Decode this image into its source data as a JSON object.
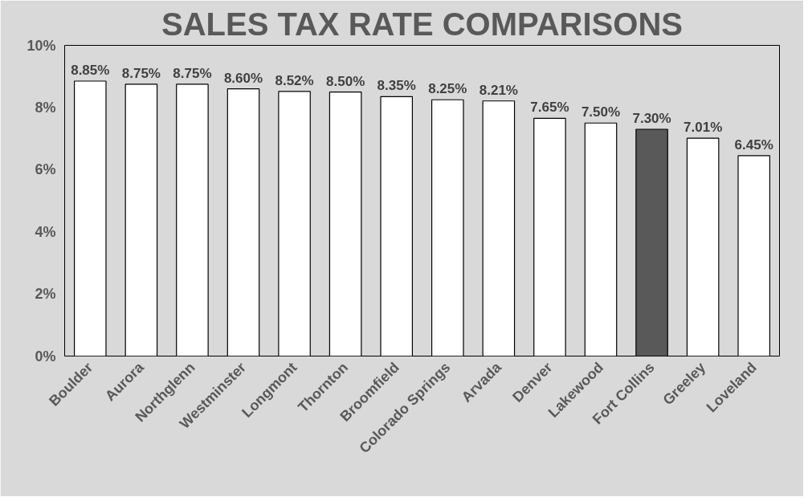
{
  "chart_data": {
    "type": "bar",
    "title": "SALES TAX RATE COMPARISONS",
    "categories": [
      "Boulder",
      "Aurora",
      "Northglenn",
      "Westminster",
      "Longmont",
      "Thornton",
      "Broomfield",
      "Colorado Springs",
      "Arvada",
      "Denver",
      "Lakewood",
      "Fort Collins",
      "Greeley",
      "Loveland"
    ],
    "values": [
      8.85,
      8.75,
      8.75,
      8.6,
      8.52,
      8.5,
      8.35,
      8.25,
      8.21,
      7.65,
      7.5,
      7.3,
      7.01,
      6.45
    ],
    "colors": [
      "#ffffff",
      "#ffffff",
      "#ffffff",
      "#ffffff",
      "#ffffff",
      "#ffffff",
      "#ffffff",
      "#ffffff",
      "#ffffff",
      "#ffffff",
      "#ffffff",
      "#595959",
      "#ffffff",
      "#ffffff"
    ],
    "value_labels": [
      "8.85%",
      "8.75%",
      "8.75%",
      "8.60%",
      "8.52%",
      "8.50%",
      "8.35%",
      "8.25%",
      "8.21%",
      "7.65%",
      "7.50%",
      "7.30%",
      "7.01%",
      "6.45%"
    ],
    "ylim": [
      0,
      10
    ],
    "yticks": [
      {
        "value": 0,
        "label": "0%"
      },
      {
        "value": 2,
        "label": "2%"
      },
      {
        "value": 4,
        "label": "4%"
      },
      {
        "value": 6,
        "label": "6%"
      },
      {
        "value": 8,
        "label": "8%"
      },
      {
        "value": 10,
        "label": "10%"
      }
    ],
    "grid": false
  }
}
